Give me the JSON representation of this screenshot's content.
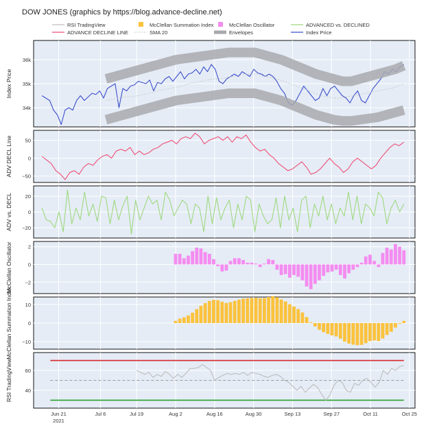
{
  "chart_data": {
    "type": "multi-panel-line-bar",
    "title": "DOW JONES (graphics by https://blog.advance-decline.net)",
    "legend": {
      "placement": "top",
      "entries": [
        {
          "label": "RSI TradingView",
          "kind": "line",
          "color": "#bdbdbd"
        },
        {
          "label": "McClellan Summation Index",
          "kind": "box",
          "color": "#fbc23d"
        },
        {
          "label": "McClellan Oscillator",
          "kind": "box",
          "color": "#f48cf0"
        },
        {
          "label": "ADVANCED vs. DECLINED",
          "kind": "line",
          "color": "#9ed87d"
        },
        {
          "label": "ADVANCE DECLINE LINE",
          "kind": "line",
          "color": "#ef4f76"
        },
        {
          "label": "SMA 20",
          "kind": "dotted",
          "color": "#c7c7c7"
        },
        {
          "label": "Envelopes",
          "kind": "band",
          "color": "#a9aaae"
        },
        {
          "label": "Index Price",
          "kind": "line",
          "color": "#3d4fcc"
        }
      ]
    },
    "x_axis": {
      "ticks": [
        {
          "label": "Jun 21",
          "day": 0
        },
        {
          "label": "Jul 6",
          "day": 15
        },
        {
          "label": "Jul 19",
          "day": 28
        },
        {
          "label": "Aug 2",
          "day": 42
        },
        {
          "label": "Aug 16",
          "day": 56
        },
        {
          "label": "Aug 30",
          "day": 70
        },
        {
          "label": "Sep 13",
          "day": 84
        },
        {
          "label": "Sep 27",
          "day": 98
        },
        {
          "label": "Oct 11",
          "day": 112
        },
        {
          "label": "Oct 25",
          "day": 126
        }
      ],
      "year_label": "2021",
      "range_days": [
        -9,
        128
      ]
    },
    "panels": [
      {
        "name": "index-price",
        "ylabel": "Index Price",
        "ylim": [
          33200,
          36800
        ],
        "yticks": [
          {
            "v": 34000,
            "label": "34k"
          },
          {
            "v": 35000,
            "label": "35k"
          },
          {
            "v": 36000,
            "label": "36k"
          }
        ],
        "series": [
          {
            "name": "Index Price",
            "type": "line",
            "color": "#3d4fcc",
            "values": [
              34500,
              34400,
              34300,
              33900,
              33700,
              33300,
              33900,
              34000,
              33900,
              34300,
              34500,
              34300,
              34450,
              34600,
              34550,
              34700,
              34400,
              34800,
              34900,
              35000,
              34000,
              34800,
              34700,
              34900,
              34950,
              35100,
              35050,
              35000,
              35150,
              34700,
              35050,
              35000,
              35200,
              35300,
              35100,
              35300,
              35500,
              35200,
              35400,
              35450,
              35600,
              35400,
              35700,
              35500,
              35800,
              35600,
              35100,
              35000,
              35200,
              35300,
              35400,
              35300,
              35500,
              35400,
              35300,
              35600,
              35450,
              35400,
              35300,
              35400,
              35300,
              35100,
              34800,
              34600,
              34200,
              34100,
              34300,
              34600,
              34900,
              34700,
              34500,
              34300,
              34400,
              34800,
              34500,
              34800,
              34900,
              34700,
              34500,
              34400,
              34200,
              34500,
              34700,
              34300,
              34200,
              34500,
              34800,
              35000,
              35200,
              35500,
              35400,
              35600,
              35500,
              35700,
              35800
            ]
          },
          {
            "name": "SMA 20",
            "type": "dotted",
            "color": "#c7c7c7",
            "values": [
              34300,
              34350,
              34400,
              34450,
              34450,
              34500,
              34550,
              34600,
              34700,
              34750,
              34800,
              34850,
              34900,
              35000,
              35050,
              35100,
              35150,
              35200,
              35200,
              35250,
              35300,
              35350,
              35400,
              35400,
              35400,
              35300,
              35250,
              35200,
              35100,
              35000,
              34900,
              34800,
              34700,
              34600,
              34500,
              34450,
              34400,
              34400,
              34450,
              34500,
              34550,
              34600,
              34650,
              34700,
              34750,
              34800,
              34900,
              35000
            ]
          },
          {
            "name": "Envelopes Upper",
            "type": "band",
            "color": "#a9aaae",
            "values": [
              35200,
              35300,
              35400,
              35500,
              35600,
              35700,
              35800,
              35900,
              36000,
              36050,
              36100,
              36150,
              36200,
              36250,
              36300,
              36300,
              36300,
              36300,
              36200,
              36100,
              36000,
              35850,
              35700,
              35550,
              35400,
              35300,
              35200,
              35100,
              35100,
              35200,
              35300,
              35400,
              35500,
              35600,
              35750
            ]
          },
          {
            "name": "Envelopes Lower",
            "type": "band",
            "color": "#a9aaae",
            "values": [
              33500,
              33600,
              33700,
              33800,
              33900,
              34000,
              34100,
              34200,
              34300,
              34350,
              34400,
              34450,
              34500,
              34550,
              34600,
              34600,
              34600,
              34600,
              34500,
              34400,
              34300,
              34150,
              34000,
              33850,
              33700,
              33600,
              33500,
              33450,
              33450,
              33500,
              33550,
              33600,
              33700,
              33800,
              33900
            ]
          }
        ]
      },
      {
        "name": "adv-decl-line",
        "ylabel": "ADV DECL Line",
        "ylim": [
          -68,
          78
        ],
        "yticks": [
          {
            "v": -50,
            "label": "−50"
          },
          {
            "v": 0,
            "label": "0"
          },
          {
            "v": 50,
            "label": "50"
          }
        ],
        "series": [
          {
            "name": "ADVANCE DECLINE LINE",
            "type": "line",
            "color": "#ef4f76",
            "values": [
              5,
              -5,
              -15,
              -35,
              -45,
              -60,
              -40,
              -35,
              -45,
              -25,
              -15,
              -20,
              -5,
              5,
              10,
              0,
              20,
              25,
              20,
              30,
              10,
              20,
              10,
              15,
              25,
              30,
              40,
              45,
              50,
              40,
              55,
              60,
              55,
              70,
              60,
              40,
              50,
              55,
              60,
              50,
              60,
              45,
              60,
              55,
              65,
              45,
              30,
              20,
              25,
              10,
              0,
              -15,
              -25,
              -35,
              -30,
              -20,
              -10,
              -25,
              -45,
              -40,
              -30,
              -15,
              0,
              -15,
              -25,
              -40,
              -30,
              -10,
              0,
              -10,
              -20,
              -30,
              -20,
              0,
              15,
              30,
              40,
              35,
              45
            ]
          }
        ]
      },
      {
        "name": "adv-vs-decl",
        "ylabel": "ADV vs. DECL",
        "ylim": [
          -33,
          33
        ],
        "yticks": [
          {
            "v": -20,
            "label": "−20"
          },
          {
            "v": 0,
            "label": "0"
          },
          {
            "v": 20,
            "label": "20"
          }
        ],
        "series": [
          {
            "name": "ADVANCED vs. DECLINED",
            "type": "line",
            "color": "#9ed87d",
            "values": [
              5,
              -10,
              -12,
              -20,
              0,
              -25,
              28,
              -15,
              5,
              -10,
              25,
              -5,
              10,
              -12,
              20,
              18,
              -15,
              15,
              -10,
              8,
              20,
              -28,
              15,
              -10,
              5,
              20,
              10,
              15,
              -10,
              25,
              15,
              -5,
              5,
              15,
              10,
              -15,
              10,
              5,
              -25,
              20,
              -15,
              18,
              -10,
              5,
              15,
              -20,
              10,
              -10,
              20,
              15,
              -25,
              10,
              -5,
              -15,
              -10,
              18,
              -20,
              20,
              -10,
              5,
              -25,
              15,
              20,
              -20,
              10,
              -5,
              20,
              -10,
              10,
              -15,
              5,
              -5,
              25,
              -10,
              20,
              -15,
              10,
              5,
              -5,
              25,
              18,
              -15,
              5,
              15,
              0,
              10
            ]
          }
        ]
      },
      {
        "name": "mcclellan-oscillator",
        "ylabel": "McClellan Oscillator",
        "ylim": [
          -3.3,
          2.6
        ],
        "yticks": [
          {
            "v": -2,
            "label": "−2"
          },
          {
            "v": 0,
            "label": "0"
          },
          {
            "v": 2,
            "label": "2"
          }
        ],
        "start_day": 42,
        "series": [
          {
            "name": "McClellan Oscillator",
            "type": "bar",
            "color": "#f48cf0",
            "values": [
              1.2,
              1.2,
              0.7,
              1.0,
              1.5,
              1.9,
              1.8,
              1.4,
              1.2,
              0.6,
              -0.2,
              -0.8,
              -0.7,
              0.4,
              0.7,
              0.7,
              0.5,
              0.2,
              0.2,
              0.1,
              -0.3,
              0.1,
              0.6,
              0.5,
              -0.6,
              -1.2,
              -1.1,
              -1.5,
              -1.2,
              -1.4,
              -1.8,
              -2.5,
              -2.8,
              -2.2,
              -1.8,
              -1.3,
              -0.9,
              -0.8,
              -0.6,
              -1.2,
              -1.6,
              -1.0,
              -0.6,
              -0.3,
              0.2,
              0.9,
              1.1,
              0.4,
              -0.3,
              1.3,
              1.9,
              1.7,
              2.3,
              2.0,
              1.6
            ]
          }
        ]
      },
      {
        "name": "mcclellan-summation",
        "ylabel": "McClellan Summation Index",
        "ylim": [
          -14,
          14
        ],
        "yticks": [
          {
            "v": -10,
            "label": "−10"
          },
          {
            "v": 0,
            "label": "0"
          },
          {
            "v": 10,
            "label": "10"
          }
        ],
        "start_day": 42,
        "series": [
          {
            "name": "McClellan Summation Index",
            "type": "bar",
            "color": "#fbc23d",
            "values": [
              1.2,
              2.4,
              3.1,
              4.1,
              5.6,
              7.5,
              9.3,
              10.7,
              11.9,
              12.5,
              12.3,
              11.5,
              10.8,
              11.2,
              11.9,
              12.6,
              13.1,
              13.3,
              13.5,
              13.6,
              13.3,
              13.4,
              14.0,
              14.5,
              13.9,
              12.7,
              11.6,
              10.1,
              8.9,
              7.5,
              5.7,
              3.2,
              0.4,
              -1.8,
              -3.6,
              -4.9,
              -5.8,
              -6.6,
              -7.2,
              -8.4,
              -10.0,
              -11.0,
              -11.6,
              -11.9,
              -11.7,
              -10.8,
              -9.7,
              -9.3,
              -9.6,
              -8.3,
              -6.4,
              -4.7,
              -2.4,
              -0.4,
              1.2
            ]
          }
        ]
      },
      {
        "name": "rsi",
        "ylabel": "RSI TradingView",
        "ylim": [
          22,
          78
        ],
        "yticks": [
          {
            "v": 40,
            "label": "40"
          },
          {
            "v": 60,
            "label": "60"
          }
        ],
        "ref_lines": [
          {
            "v": 70,
            "color": "#d62728",
            "style": "solid"
          },
          {
            "v": 50,
            "color": "#999999",
            "style": "dashed"
          },
          {
            "v": 30,
            "color": "#2ca02c",
            "style": "solid"
          }
        ],
        "start_day": 28,
        "series": [
          {
            "name": "RSI TradingView",
            "type": "line",
            "color": "#bdbdbd",
            "values": [
              60,
              58,
              56,
              58,
              53,
              56,
              54,
              59,
              56,
              52,
              56,
              53,
              57,
              62,
              62,
              63,
              66,
              63,
              60,
              50,
              53,
              55,
              57,
              56,
              57,
              56,
              58,
              55,
              58,
              57,
              56,
              54,
              53,
              55,
              56,
              54,
              50,
              48,
              44,
              40,
              44,
              38,
              42,
              46,
              43,
              36,
              30,
              35,
              45,
              50,
              48,
              40,
              38,
              47,
              45,
              50,
              52,
              48,
              43,
              48,
              60,
              56,
              62,
              60,
              64,
              65
            ]
          }
        ]
      }
    ]
  }
}
